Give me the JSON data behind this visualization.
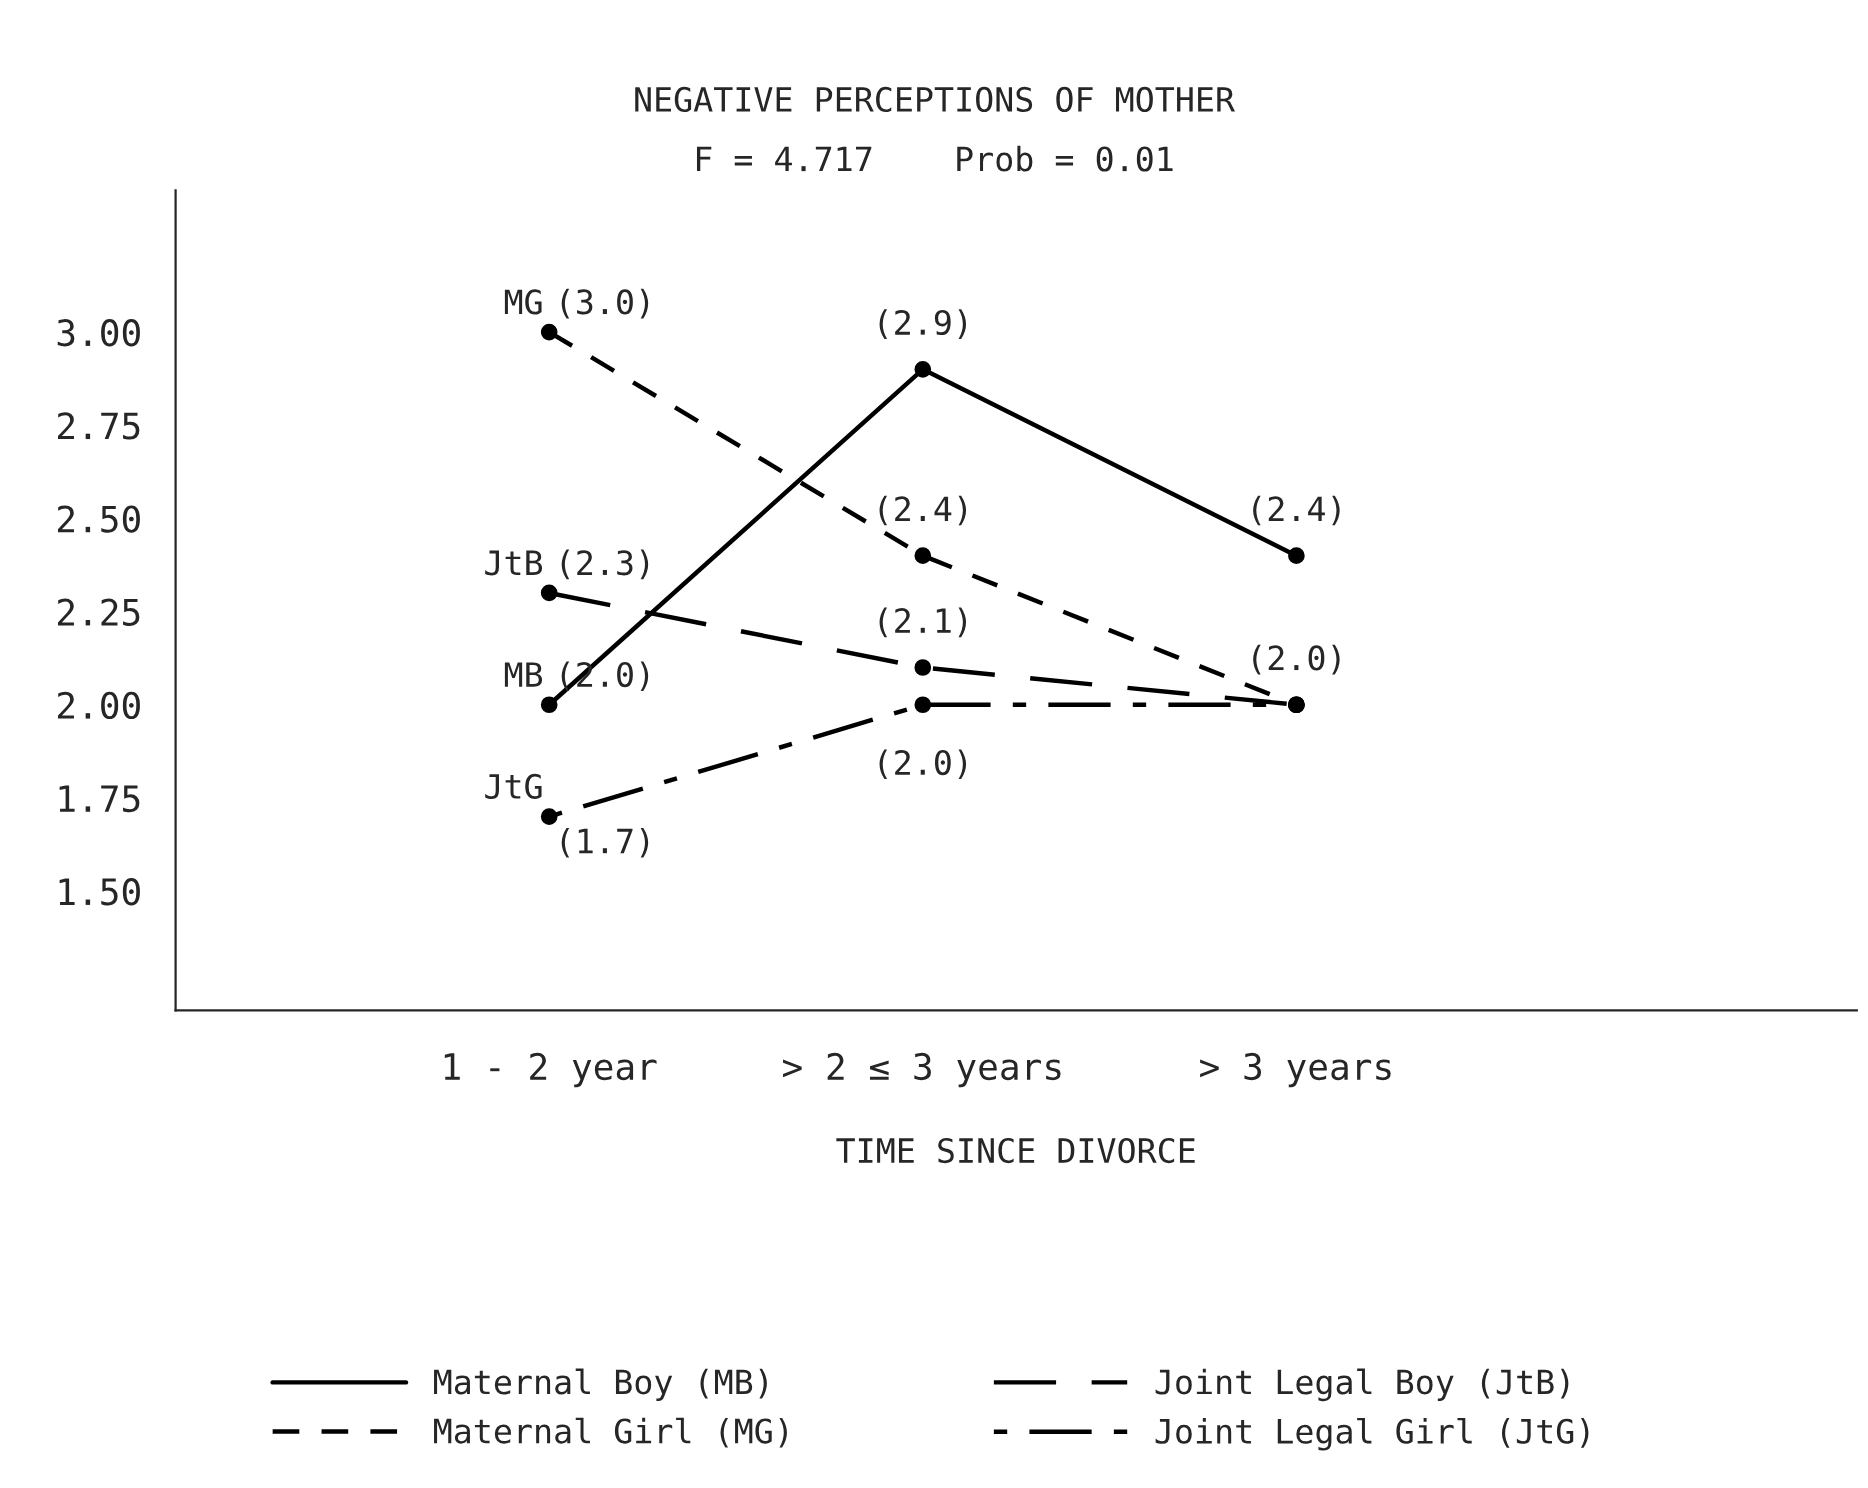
{
  "chart_data": {
    "type": "line",
    "title": "NEGATIVE PERCEPTIONS OF MOTHER",
    "subtitle": "F = 4.717    Prob = 0.01",
    "xlabel": "TIME SINCE DIVORCE",
    "categories": [
      "1 - 2 year",
      "> 2 ≤ 3 years",
      "> 3 years"
    ],
    "series": [
      {
        "name": "Maternal Boy (MB)",
        "color": "#000000",
        "line_style": "solid",
        "values": [
          2.0,
          2.9,
          2.4
        ],
        "value_labels": [
          "(2.0)",
          "(2.9)",
          "(2.4)"
        ]
      },
      {
        "name": "Maternal Girl (MG)",
        "color": "#000000",
        "line_style": "dashed",
        "values": [
          3.0,
          2.4,
          2.0
        ],
        "value_labels": [
          "(3.0)",
          "(2.4)",
          "(2.0)"
        ]
      },
      {
        "name": "Joint Legal Boy (JtB)",
        "color": "#000000",
        "line_style": "longdash",
        "values": [
          2.3,
          2.1,
          2.0
        ],
        "value_labels": [
          "(2.3)",
          "(2.1)",
          null
        ]
      },
      {
        "name": "Joint Legal Girl (JtG)",
        "color": "#000000",
        "line_style": "dashdot",
        "values": [
          1.7,
          2.0,
          2.0
        ],
        "value_labels": [
          "(1.7)",
          "(2.0)",
          null
        ]
      }
    ],
    "annotations": [
      {
        "text": "MG",
        "x": "1 - 2 year",
        "y": 3.0
      },
      {
        "text": "JtB",
        "x": "1 - 2 year",
        "y": 2.3
      },
      {
        "text": "MB",
        "x": "1 - 2 year",
        "y": 2.0
      },
      {
        "text": "JtG",
        "x": "1 - 2 year",
        "y": 1.7
      }
    ],
    "ylim": [
      1.18,
      3.38
    ],
    "yticks": [
      {
        "value": 1.5,
        "label": "1.50"
      },
      {
        "value": 1.75,
        "label": "1.75"
      },
      {
        "value": 2.0,
        "label": "2.00"
      },
      {
        "value": 2.25,
        "label": "2.25"
      },
      {
        "value": 2.5,
        "label": "2.50"
      },
      {
        "value": 2.75,
        "label": "2.75"
      },
      {
        "value": 3.0,
        "label": "3.00"
      }
    ],
    "marker": "circle",
    "grid": false,
    "legend": "bottom"
  }
}
